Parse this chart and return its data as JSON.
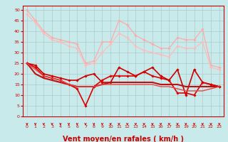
{
  "background_color": "#c8eaea",
  "grid_color": "#b0c8c8",
  "xlabel": "Vent moyen/en rafales ( km/h )",
  "xlabel_color": "#cc0000",
  "xlabel_fontsize": 7,
  "ylabel_ticks": [
    0,
    5,
    10,
    15,
    20,
    25,
    30,
    35,
    40,
    45,
    50
  ],
  "xticks": [
    0,
    1,
    2,
    3,
    4,
    5,
    6,
    7,
    8,
    9,
    10,
    11,
    12,
    13,
    14,
    15,
    16,
    17,
    18,
    19,
    20,
    21,
    22,
    23
  ],
  "xlim": [
    -0.5,
    23.5
  ],
  "ylim": [
    0,
    52
  ],
  "lines": [
    {
      "x": [
        0,
        1,
        2,
        3,
        4,
        5,
        6,
        7,
        8,
        9,
        10,
        11,
        12,
        13,
        14,
        15,
        16,
        17,
        18,
        19,
        20,
        21,
        22,
        23
      ],
      "y": [
        50,
        45,
        40,
        37,
        36,
        35,
        34,
        25,
        26,
        35,
        35,
        45,
        43,
        38,
        36,
        34,
        32,
        32,
        37,
        36,
        36,
        41,
        24,
        23
      ],
      "color": "#ffaaaa",
      "lw": 0.9,
      "marker": "D",
      "ms": 1.8
    },
    {
      "x": [
        0,
        1,
        2,
        3,
        4,
        5,
        6,
        7,
        8,
        9,
        10,
        11,
        12,
        13,
        14,
        15,
        16,
        17,
        18,
        19,
        20,
        21,
        22,
        23
      ],
      "y": [
        48,
        44,
        39,
        36,
        35,
        33,
        32,
        24,
        25,
        30,
        34,
        39,
        37,
        33,
        31,
        30,
        29,
        28,
        33,
        32,
        32,
        35,
        23,
        22
      ],
      "color": "#ffbbbb",
      "lw": 0.9,
      "marker": "D",
      "ms": 1.8
    },
    {
      "x": [
        0,
        1,
        2,
        3,
        4,
        5,
        6,
        7,
        8,
        9,
        10,
        11,
        12,
        13,
        14,
        15,
        16,
        17,
        18,
        19,
        20,
        21,
        22,
        23
      ],
      "y": [
        25,
        24,
        20,
        19,
        18,
        17,
        17,
        19,
        20,
        16,
        16,
        23,
        21,
        19,
        21,
        23,
        19,
        17,
        22,
        10,
        22,
        16,
        15,
        14
      ],
      "color": "#cc0000",
      "lw": 1.2,
      "marker": "D",
      "ms": 1.8
    },
    {
      "x": [
        0,
        1,
        2,
        3,
        4,
        5,
        6,
        7,
        8,
        9,
        10,
        11,
        12,
        13,
        14,
        15,
        16,
        17,
        18,
        19,
        20,
        21,
        22,
        23
      ],
      "y": [
        25,
        23,
        19,
        18,
        17,
        15,
        13,
        5,
        14,
        17,
        19,
        19,
        19,
        19,
        21,
        19,
        18,
        17,
        11,
        11,
        10,
        16,
        15,
        14
      ],
      "color": "#dd0000",
      "lw": 1.2,
      "marker": "D",
      "ms": 1.8
    },
    {
      "x": [
        0,
        1,
        2,
        3,
        4,
        5,
        6,
        7,
        8,
        9,
        10,
        11,
        12,
        13,
        14,
        15,
        16,
        17,
        18,
        19,
        20,
        21,
        22,
        23
      ],
      "y": [
        25,
        20,
        18,
        17,
        16,
        15,
        14,
        14,
        14,
        15,
        16,
        16,
        16,
        16,
        16,
        16,
        15,
        15,
        15,
        14,
        14,
        14,
        14,
        14
      ],
      "color": "#bb1111",
      "lw": 1.5,
      "marker": null,
      "ms": 0
    },
    {
      "x": [
        0,
        1,
        2,
        3,
        4,
        5,
        6,
        7,
        8,
        9,
        10,
        11,
        12,
        13,
        14,
        15,
        16,
        17,
        18,
        19,
        20,
        21,
        22,
        23
      ],
      "y": [
        25,
        22,
        19,
        18,
        17,
        15,
        14,
        14,
        14,
        15,
        15,
        15,
        15,
        15,
        15,
        15,
        14,
        14,
        13,
        12,
        12,
        12,
        13,
        14
      ],
      "color": "#ee4444",
      "lw": 1.0,
      "marker": null,
      "ms": 0
    }
  ],
  "arrow_color": "#cc0000"
}
